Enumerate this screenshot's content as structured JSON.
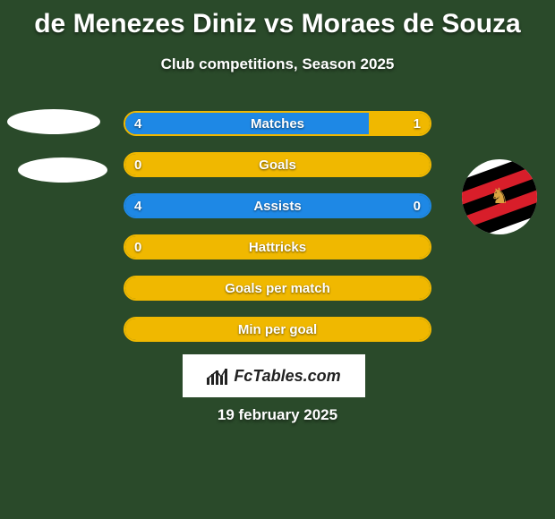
{
  "colors": {
    "background": "#2a4a2a",
    "left_border": "#1e88e5",
    "left_fill": "#1e88e5",
    "right_border": "#f0b800",
    "right_fill": "#f0b800",
    "text": "#ffffff",
    "footer_bg": "#ffffff",
    "footer_text": "#222222"
  },
  "title": "de Menezes Diniz vs Moraes de Souza",
  "subtitle": "Club competitions, Season 2025",
  "title_fontsize": 30,
  "subtitle_fontsize": 17,
  "stat_fontsize": 15,
  "rows": [
    {
      "label": "Matches",
      "left": "4",
      "right": "1",
      "left_pct": 80,
      "right_pct": 20
    },
    {
      "label": "Goals",
      "left": "0",
      "right": "",
      "left_pct": 0,
      "right_pct": 100
    },
    {
      "label": "Assists",
      "left": "4",
      "right": "0",
      "left_pct": 100,
      "right_pct": 0
    },
    {
      "label": "Hattricks",
      "left": "0",
      "right": "",
      "left_pct": 0,
      "right_pct": 100
    },
    {
      "label": "Goals per match",
      "left": "",
      "right": "",
      "left_pct": 0,
      "right_pct": 100
    },
    {
      "label": "Min per goal",
      "left": "",
      "right": "",
      "left_pct": 0,
      "right_pct": 100
    }
  ],
  "footer_brand": "FcTables.com",
  "footer_icon": "bar-chart-icon",
  "date": "19 february 2025"
}
